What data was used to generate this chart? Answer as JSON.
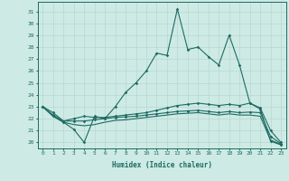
{
  "xlabel": "Humidex (Indice chaleur)",
  "xlim": [
    -0.5,
    23.5
  ],
  "ylim": [
    19.5,
    31.8
  ],
  "yticks": [
    20,
    21,
    22,
    23,
    24,
    25,
    26,
    27,
    28,
    29,
    30,
    31
  ],
  "xticks": [
    0,
    1,
    2,
    3,
    4,
    5,
    6,
    7,
    8,
    9,
    10,
    11,
    12,
    13,
    14,
    15,
    16,
    17,
    18,
    19,
    20,
    21,
    22,
    23
  ],
  "background_color": "#ceeae5",
  "grid_color": "#b8d8d2",
  "line_color": "#1d6b62",
  "series": [
    [
      23.0,
      22.2,
      21.7,
      21.1,
      20.0,
      22.2,
      22.0,
      23.0,
      24.2,
      25.0,
      26.0,
      27.5,
      27.3,
      31.2,
      27.8,
      28.0,
      27.2,
      26.5,
      29.0,
      26.5,
      23.3,
      22.8,
      20.1,
      19.8
    ],
    [
      23.0,
      22.5,
      21.8,
      22.0,
      22.2,
      22.1,
      22.1,
      22.2,
      22.3,
      22.4,
      22.5,
      22.7,
      22.9,
      23.1,
      23.2,
      23.3,
      23.2,
      23.1,
      23.2,
      23.1,
      23.3,
      22.9,
      21.0,
      20.0
    ],
    [
      23.0,
      22.3,
      21.8,
      21.8,
      21.8,
      21.9,
      22.0,
      22.1,
      22.15,
      22.2,
      22.3,
      22.4,
      22.5,
      22.6,
      22.65,
      22.7,
      22.6,
      22.5,
      22.6,
      22.5,
      22.55,
      22.5,
      20.5,
      19.9
    ],
    [
      23.0,
      22.2,
      21.7,
      21.5,
      21.4,
      21.5,
      21.7,
      21.85,
      21.9,
      22.0,
      22.1,
      22.2,
      22.3,
      22.4,
      22.45,
      22.5,
      22.4,
      22.3,
      22.4,
      22.3,
      22.3,
      22.2,
      20.2,
      19.85
    ]
  ],
  "markers": [
    true,
    true,
    true,
    false
  ]
}
